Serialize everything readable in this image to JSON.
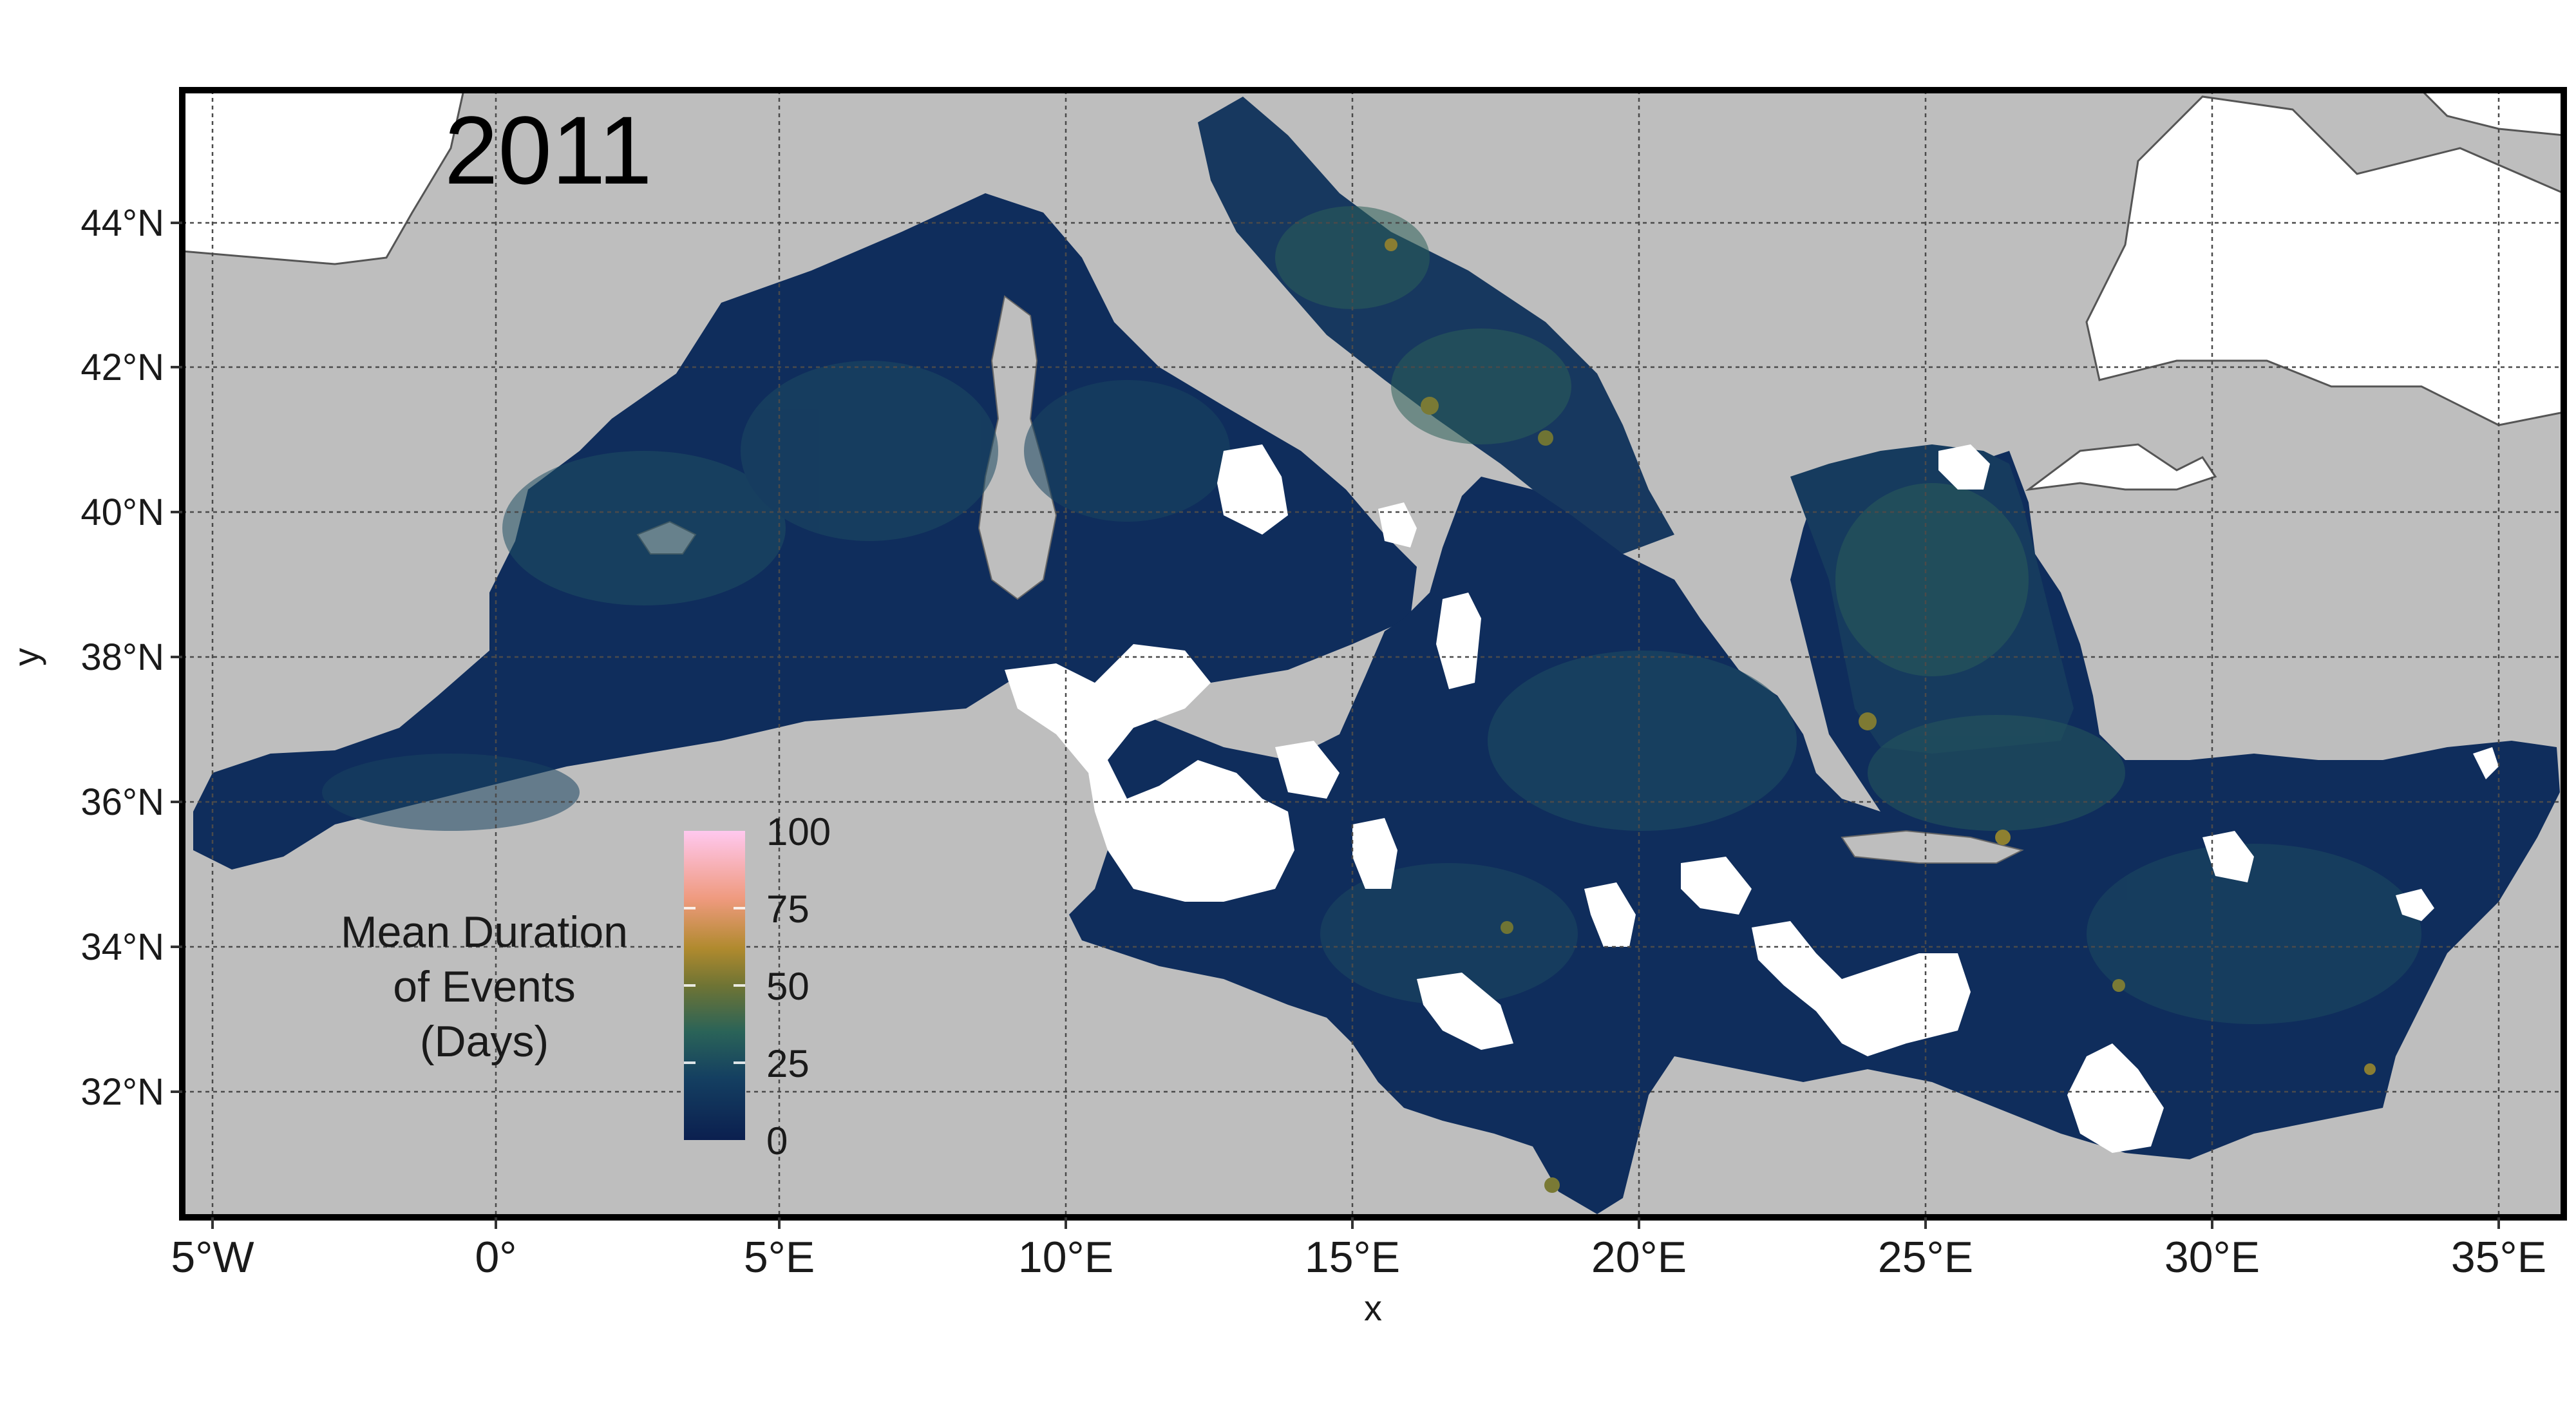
{
  "map": {
    "year_label": "2011",
    "x_axis_label": "x",
    "y_axis_label": "y",
    "x_ticks": [
      "5°W",
      "0°",
      "5°E",
      "10°E",
      "15°E",
      "20°E",
      "25°E",
      "30°E",
      "35°E"
    ],
    "y_ticks": [
      "44°N",
      "42°N",
      "40°N",
      "38°N",
      "36°N",
      "34°N",
      "32°N"
    ],
    "colors": {
      "land": "#bebebe",
      "no_data": "#ffffff",
      "sea_base": "#0f2d5c",
      "frame": "#000000",
      "grid": "#4a4a4a"
    }
  },
  "legend": {
    "title_lines": [
      "Mean Duration",
      "of Events",
      "(Days)"
    ],
    "ticks": [
      "100",
      "75",
      "50",
      "25",
      "0"
    ],
    "colormap": [
      "#0b1f4f",
      "#1c4a5e",
      "#2e6a55",
      "#7a7a35",
      "#b68a30",
      "#f2a07a",
      "#ffc3e8"
    ]
  }
}
